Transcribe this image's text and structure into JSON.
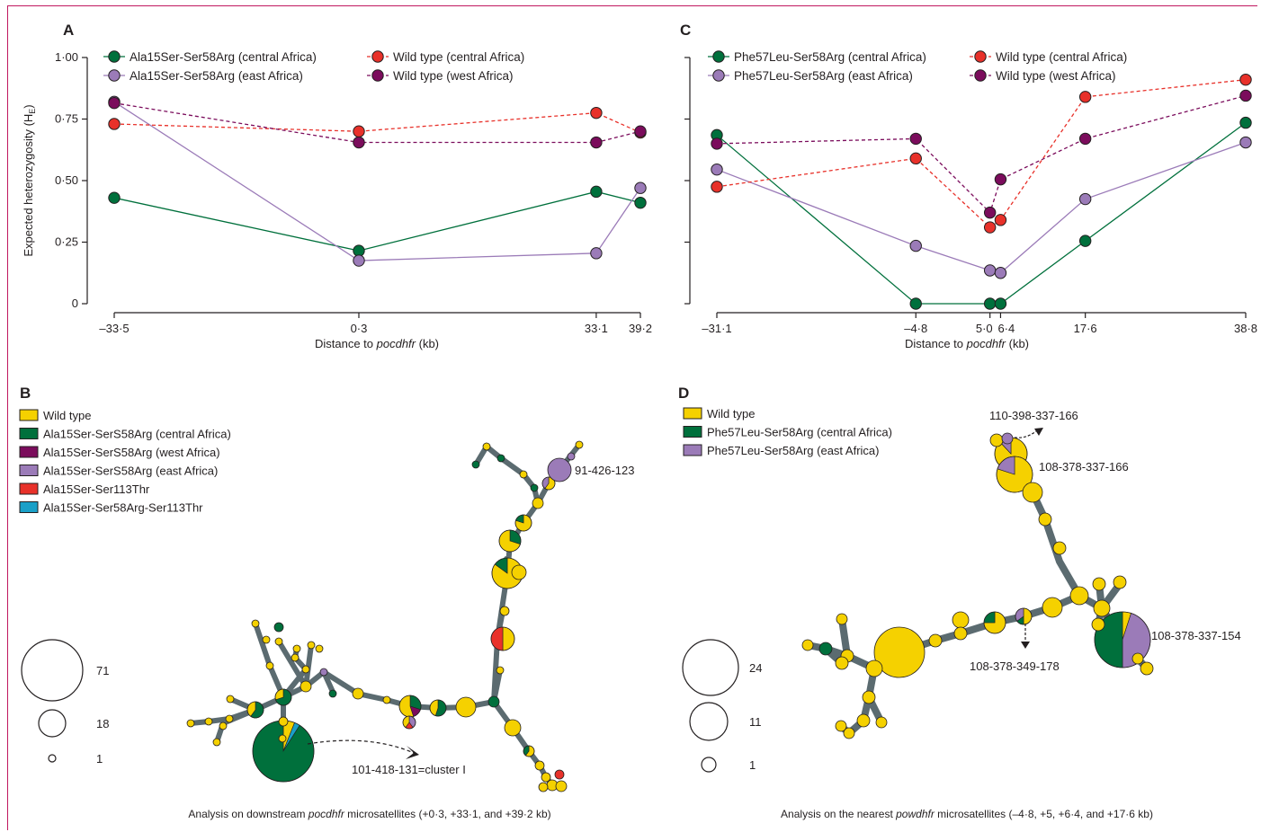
{
  "panels": {
    "A": {
      "letter": "A"
    },
    "B": {
      "letter": "B",
      "caption_pre": "Analysis on downstream ",
      "caption_em": "pocdhfr",
      "caption_post": " microsatellites (+0·3, +33·1, and +39·2 kb)",
      "haplotype_labels": [
        "91-426-123",
        "101-418-131=cluster I"
      ],
      "size_legend": [
        "71",
        "18",
        "1"
      ]
    },
    "C": {
      "letter": "C"
    },
    "D": {
      "letter": "D",
      "caption_pre": "Analysis on the nearest ",
      "caption_em": "powdhfr",
      "caption_post": " microsatellites (–4·8, +5, +6·4, and +17·6 kb)",
      "haplotype_labels": [
        "110-398-337-166",
        "108-378-337-166",
        "108-378-337-154",
        "108-378-349-178"
      ],
      "size_legend": [
        "24",
        "11",
        "1"
      ]
    }
  },
  "colors": {
    "wild_type": "#f5d100",
    "central_africa": "#00703c",
    "west_africa": "#7b0c5c",
    "east_africa": "#9b7bb8",
    "ser113thr": "#e8312a",
    "ser58arg_ser113thr": "#1aa0c8",
    "wt_central_line": "#e8312a",
    "wt_west_line": "#7b0c5c",
    "edge": "#5b6b70",
    "frame": "#c0185f"
  },
  "network_legends": {
    "B": [
      {
        "label": "Wild type",
        "color": "#f5d100"
      },
      {
        "label": "Ala15Ser-SerS58Arg (central Africa)",
        "color": "#00703c"
      },
      {
        "label": "Ala15Ser-SerS58Arg (west Africa)",
        "color": "#7b0c5c"
      },
      {
        "label": "Ala15Ser-SerS58Arg (east Africa)",
        "color": "#9b7bb8"
      },
      {
        "label": "Ala15Ser-Ser113Thr",
        "color": "#e8312a"
      },
      {
        "label": "Ala15Ser-Ser58Arg-Ser113Thr",
        "color": "#1aa0c8"
      }
    ],
    "D": [
      {
        "label": "Wild type",
        "color": "#f5d100"
      },
      {
        "label": "Phe57Leu-Ser58Arg (central Africa)",
        "color": "#00703c"
      },
      {
        "label": "Phe57Leu-Ser58Arg (east Africa)",
        "color": "#9b7bb8"
      }
    ]
  },
  "chart_data": [
    {
      "panel": "A",
      "type": "line",
      "ylabel": "Expected heterozygosity (H",
      "ylabel_sub": "E",
      "ylabel_close": ")",
      "xlabel_pre": "Distance to ",
      "xlabel_em": "pocdhfr",
      "xlabel_post": " (kb)",
      "x_tick_labels": [
        "–33·5",
        "0·3",
        "33·1",
        "39·2"
      ],
      "x": [
        -33.5,
        0.3,
        33.1,
        39.2
      ],
      "y_tick_labels": [
        "0",
        "0·25",
        "0·50",
        "0·75",
        "1·00"
      ],
      "yticks": [
        0,
        0.25,
        0.5,
        0.75,
        1.0
      ],
      "ylim": [
        0,
        1.0
      ],
      "xlim": [
        -33.5,
        39.2
      ],
      "series": [
        {
          "name": "Ala15Ser-Ser58Arg (central Africa)",
          "color": "#00703c",
          "dashed": false,
          "x": [
            -33.5,
            0.3,
            33.1,
            39.2
          ],
          "y": [
            0.43,
            0.215,
            0.455,
            0.41
          ]
        },
        {
          "name": "Ala15Ser-Ser58Arg (east Africa)",
          "color": "#9b7bb8",
          "dashed": false,
          "x": [
            -33.5,
            0.3,
            33.1,
            39.2
          ],
          "y": [
            0.82,
            0.175,
            0.205,
            0.47
          ]
        },
        {
          "name": "Wild type (central Africa)",
          "color": "#e8312a",
          "dashed": true,
          "x": [
            -33.5,
            0.3,
            33.1,
            39.2
          ],
          "y": [
            0.73,
            0.7,
            0.775,
            0.695
          ]
        },
        {
          "name": "Wild type (west Africa)",
          "color": "#7b0c5c",
          "dashed": true,
          "x": [
            -33.5,
            0.3,
            33.1,
            39.2
          ],
          "y": [
            0.815,
            0.655,
            0.655,
            0.7
          ]
        }
      ]
    },
    {
      "panel": "C",
      "type": "line",
      "xlabel_pre": "Distance to ",
      "xlabel_em": "pocdhfr",
      "xlabel_post": " (kb)",
      "x_tick_labels": [
        "–31·1",
        "–4·8",
        "5·0",
        "6·4",
        "17·6",
        "38·8"
      ],
      "x": [
        -31.1,
        -4.8,
        5.0,
        6.4,
        17.6,
        38.8
      ],
      "yticks": [
        0,
        0.25,
        0.5,
        0.75,
        1.0
      ],
      "ylim": [
        0,
        1.0
      ],
      "xlim": [
        -31.1,
        38.8
      ],
      "series": [
        {
          "name": "Phe57Leu-Ser58Arg (central Africa)",
          "color": "#00703c",
          "dashed": false,
          "x": [
            -31.1,
            -4.8,
            5.0,
            6.4,
            17.6,
            38.8
          ],
          "y": [
            0.685,
            0.0,
            0.0,
            0.0,
            0.255,
            0.735
          ]
        },
        {
          "name": "Phe57Leu-Ser58Arg (east Africa)",
          "color": "#9b7bb8",
          "dashed": false,
          "x": [
            -31.1,
            -4.8,
            5.0,
            6.4,
            17.6,
            38.8
          ],
          "y": [
            0.545,
            0.235,
            0.135,
            0.125,
            0.425,
            0.655
          ]
        },
        {
          "name": "Wild type (central Africa)",
          "color": "#e8312a",
          "dashed": true,
          "x": [
            -31.1,
            -4.8,
            5.0,
            6.4,
            17.6,
            38.8
          ],
          "y": [
            0.475,
            0.59,
            0.31,
            0.34,
            0.84,
            0.91
          ]
        },
        {
          "name": "Wild type (west Africa)",
          "color": "#7b0c5c",
          "dashed": true,
          "x": [
            -31.1,
            -4.8,
            5.0,
            6.4,
            17.6,
            38.8
          ],
          "y": [
            0.65,
            0.67,
            0.37,
            0.505,
            0.67,
            0.845
          ]
        }
      ]
    }
  ]
}
